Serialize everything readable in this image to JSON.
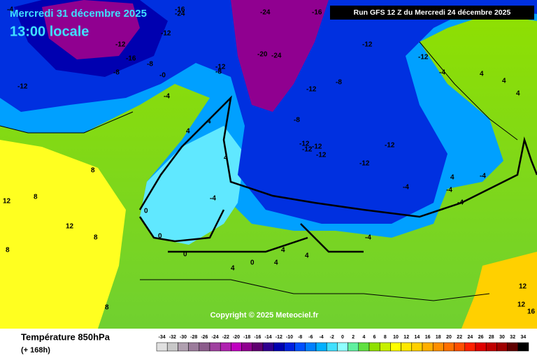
{
  "header": {
    "date": "Mercredi 31 décembre 2025",
    "time": "13:00 locale",
    "run": "Run GFS 12 Z du Mercredi 24 décembre 2025"
  },
  "map": {
    "copyright": "Copyright © 2025 Meteociel.fr",
    "contour_labels": [
      "-4",
      "-16",
      "-24",
      "-16",
      "-24",
      "-12",
      "-12",
      "-16",
      "-8",
      "-8",
      "-12",
      "-0",
      "-4",
      "-8",
      "-12",
      "-20",
      "-24",
      "-12",
      "-12",
      "-8",
      "-8",
      "-12",
      "-12",
      "-12",
      "-12",
      "-12",
      "-12",
      "-12",
      "-4",
      "-4",
      "-4",
      "-4",
      "-4",
      "-4",
      "-4",
      "0",
      "0",
      "0",
      "0",
      "4",
      "4",
      "4",
      "4",
      "4",
      "4",
      "4",
      "4",
      "4",
      "4",
      "4",
      "8",
      "8",
      "8",
      "8",
      "8",
      "12",
      "12",
      "12",
      "12",
      "16"
    ]
  },
  "footer": {
    "title": "Température 850hPa",
    "subtitle": "(+ 168h)"
  },
  "legend": {
    "values": [
      -34,
      -32,
      -30,
      -28,
      -26,
      -24,
      -22,
      -20,
      -18,
      -16,
      -14,
      -12,
      -10,
      -8,
      -6,
      -4,
      -2,
      0,
      2,
      4,
      6,
      8,
      10,
      12,
      14,
      16,
      18,
      20,
      22,
      24,
      26,
      28,
      30,
      32,
      34
    ],
    "colors": [
      "#e0e0e0",
      "#c8c8c8",
      "#b0a0b0",
      "#9c7c9c",
      "#8c5c8c",
      "#a040a0",
      "#b020b0",
      "#c000c0",
      "#900090",
      "#600070",
      "#300090",
      "#0000b0",
      "#0020e0",
      "#0050ff",
      "#0080ff",
      "#00b0ff",
      "#40e0ff",
      "#90ffff",
      "#60f0a0",
      "#60e040",
      "#90e000",
      "#c8f000",
      "#ffff00",
      "#ffe800",
      "#ffd000",
      "#ffb000",
      "#ff9000",
      "#ff7000",
      "#ff5000",
      "#ff2000",
      "#e00000",
      "#c00000",
      "#a00000",
      "#600000",
      "#000000"
    ]
  }
}
